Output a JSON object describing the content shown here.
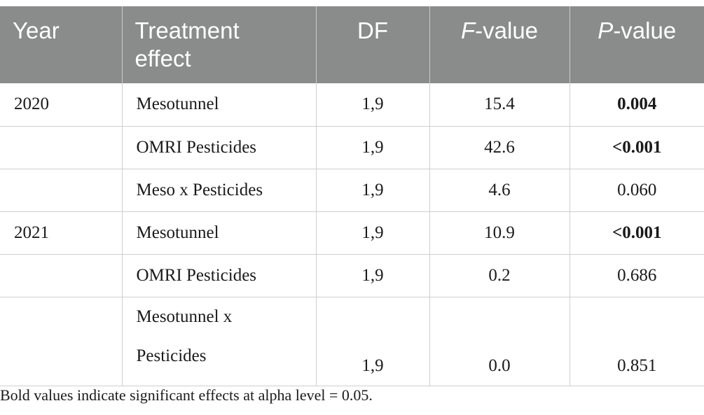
{
  "table": {
    "headers": {
      "year": "Year",
      "treatment_line1": "Treatment",
      "treatment_line2": "effect",
      "df": "DF",
      "f_italic": "F",
      "f_rest": "-value",
      "p_italic": "P",
      "p_rest": "-value"
    },
    "rows": [
      {
        "year": "2020",
        "treatment": "Mesotunnel",
        "df": "1,9",
        "f": "15.4",
        "p": "0.004"
      },
      {
        "year": "",
        "treatment": "OMRI Pesticides",
        "df": "1,9",
        "f": "42.6",
        "p": "<0.001"
      },
      {
        "year": "",
        "treatment": "Meso x Pesticides",
        "df": "1,9",
        "f": "4.6",
        "p": "0.060"
      },
      {
        "year": "2021",
        "treatment": "Mesotunnel",
        "df": "1,9",
        "f": "10.9",
        "p": "<0.001"
      },
      {
        "year": "",
        "treatment": "OMRI Pesticides",
        "df": "1,9",
        "f": "0.2",
        "p": "0.686"
      },
      {
        "year": "",
        "treatment_line1": "Mesotunnel x",
        "treatment_line2": "Pesticides",
        "df": "1,9",
        "f": "0.0",
        "p": "0.851"
      }
    ]
  },
  "footnote": "Bold values indicate significant effects at alpha level = 0.05."
}
